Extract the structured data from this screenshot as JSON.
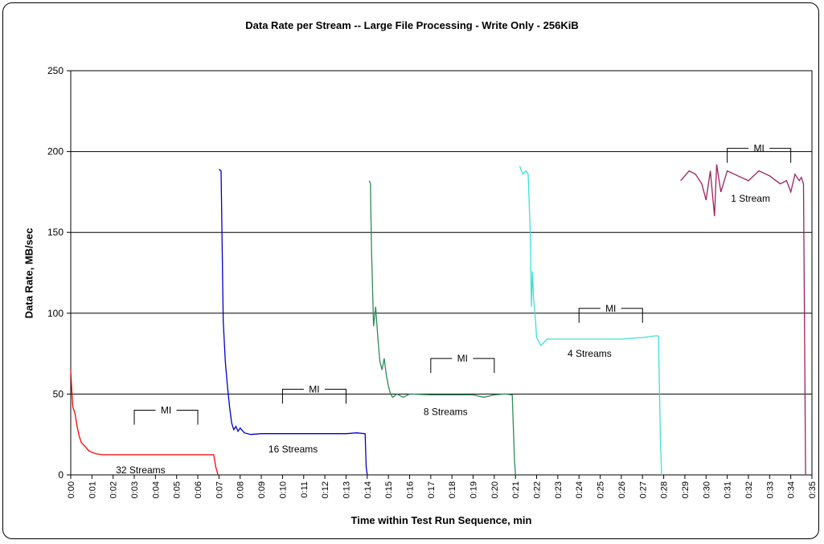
{
  "chart_data": {
    "type": "line",
    "title": "Data Rate per Stream -- Large File Processing - Write Only - 256KiB",
    "xlabel": "Time within Test Run Sequence, min",
    "ylabel": "Data Rate, MB/sec",
    "xlim": [
      0,
      35
    ],
    "ylim": [
      0,
      250
    ],
    "y_ticks": [
      0,
      50,
      100,
      150,
      200,
      250
    ],
    "x_ticks": [
      "0:00",
      "0:01",
      "0:02",
      "0:03",
      "0:04",
      "0:05",
      "0:06",
      "0:07",
      "0:08",
      "0:09",
      "0:10",
      "0:11",
      "0:12",
      "0:13",
      "0:14",
      "0:15",
      "0:16",
      "0:17",
      "0:18",
      "0:19",
      "0:20",
      "0:21",
      "0:22",
      "0:23",
      "0:24",
      "0:25",
      "0:26",
      "0:27",
      "0:28",
      "0:29",
      "0:30",
      "0:31",
      "0:32",
      "0:33",
      "0:34",
      "0:35"
    ],
    "grid": "horizontal",
    "legend": "none",
    "series": [
      {
        "color": "#ff0000",
        "points": [
          [
            0,
            65
          ],
          [
            0.05,
            52
          ],
          [
            0.1,
            42
          ],
          [
            0.2,
            38
          ],
          [
            0.3,
            30
          ],
          [
            0.4,
            24
          ],
          [
            0.5,
            20
          ],
          [
            0.65,
            18
          ],
          [
            0.85,
            15
          ],
          [
            1.0,
            14
          ],
          [
            1.2,
            13
          ],
          [
            1.5,
            12.5
          ],
          [
            3,
            12.5
          ],
          [
            5,
            12.5
          ],
          [
            6.5,
            12.5
          ],
          [
            6.75,
            12.5
          ],
          [
            6.85,
            5
          ],
          [
            6.95,
            0
          ]
        ]
      },
      {
        "color": "#0000cc",
        "points": [
          [
            7.0,
            189
          ],
          [
            7.1,
            188
          ],
          [
            7.15,
            140
          ],
          [
            7.2,
            95
          ],
          [
            7.3,
            70
          ],
          [
            7.4,
            55
          ],
          [
            7.5,
            42
          ],
          [
            7.6,
            32
          ],
          [
            7.7,
            28
          ],
          [
            7.8,
            30
          ],
          [
            7.9,
            27
          ],
          [
            8.0,
            29
          ],
          [
            8.2,
            26
          ],
          [
            8.5,
            25
          ],
          [
            9,
            25.5
          ],
          [
            10,
            25.5
          ],
          [
            11,
            25.5
          ],
          [
            12,
            25.5
          ],
          [
            13,
            25.5
          ],
          [
            13.5,
            26
          ],
          [
            13.9,
            25.5
          ],
          [
            13.95,
            5
          ],
          [
            14.0,
            0
          ]
        ]
      },
      {
        "color": "#2e8b57",
        "points": [
          [
            14.1,
            182
          ],
          [
            14.15,
            180
          ],
          [
            14.2,
            140
          ],
          [
            14.3,
            92
          ],
          [
            14.4,
            104
          ],
          [
            14.5,
            85
          ],
          [
            14.6,
            70
          ],
          [
            14.7,
            65
          ],
          [
            14.8,
            72
          ],
          [
            14.9,
            62
          ],
          [
            15.0,
            55
          ],
          [
            15.1,
            50
          ],
          [
            15.2,
            48
          ],
          [
            15.4,
            50
          ],
          [
            15.7,
            48
          ],
          [
            16,
            50
          ],
          [
            17,
            49.5
          ],
          [
            18,
            49.5
          ],
          [
            19,
            49.5
          ],
          [
            19.5,
            48
          ],
          [
            20,
            49.5
          ],
          [
            20.5,
            50
          ],
          [
            20.85,
            49.5
          ],
          [
            20.95,
            10
          ],
          [
            21.0,
            0
          ]
        ]
      },
      {
        "color": "#40e0d0",
        "points": [
          [
            21.2,
            191
          ],
          [
            21.35,
            186
          ],
          [
            21.5,
            188
          ],
          [
            21.6,
            186
          ],
          [
            21.7,
            150
          ],
          [
            21.75,
            104
          ],
          [
            21.8,
            126
          ],
          [
            21.85,
            110
          ],
          [
            21.95,
            95
          ],
          [
            22.0,
            85
          ],
          [
            22.2,
            80
          ],
          [
            22.5,
            84
          ],
          [
            23,
            84
          ],
          [
            24,
            84
          ],
          [
            25,
            84
          ],
          [
            26,
            84
          ],
          [
            27,
            85
          ],
          [
            27.6,
            86
          ],
          [
            27.75,
            86
          ],
          [
            27.85,
            20
          ],
          [
            27.9,
            0
          ]
        ]
      },
      {
        "color": "#a0205e",
        "points": [
          [
            28.8,
            182
          ],
          [
            29.0,
            185
          ],
          [
            29.2,
            188
          ],
          [
            29.5,
            186
          ],
          [
            29.8,
            180
          ],
          [
            30.0,
            170
          ],
          [
            30.2,
            188
          ],
          [
            30.4,
            160
          ],
          [
            30.5,
            192
          ],
          [
            30.7,
            175
          ],
          [
            31,
            188
          ],
          [
            31.5,
            185
          ],
          [
            32,
            182
          ],
          [
            32.5,
            188
          ],
          [
            33,
            185
          ],
          [
            33.5,
            180
          ],
          [
            33.8,
            182
          ],
          [
            34.0,
            175
          ],
          [
            34.2,
            186
          ],
          [
            34.4,
            182
          ],
          [
            34.5,
            184
          ],
          [
            34.6,
            180
          ],
          [
            34.7,
            0
          ]
        ]
      }
    ],
    "annotations": [
      {
        "text": "MI",
        "x1": 3,
        "x2": 6,
        "y": 40
      },
      {
        "text": "MI",
        "x1": 10,
        "x2": 13,
        "y": 53
      },
      {
        "text": "MI",
        "x1": 17,
        "x2": 20,
        "y": 72
      },
      {
        "text": "MI",
        "x1": 24,
        "x2": 27,
        "y": 103
      },
      {
        "text": "MI",
        "x1": 31,
        "x2": 34,
        "y": 202
      }
    ],
    "series_labels": [
      {
        "text": "32 Streams",
        "x": 3.3,
        "y": 1
      },
      {
        "text": "16 Streams",
        "x": 10.5,
        "y": 14
      },
      {
        "text": "8 Streams",
        "x": 17.7,
        "y": 37
      },
      {
        "text": "4 Streams",
        "x": 24.5,
        "y": 73
      },
      {
        "text": "1 Stream",
        "x": 32.1,
        "y": 169
      }
    ]
  }
}
